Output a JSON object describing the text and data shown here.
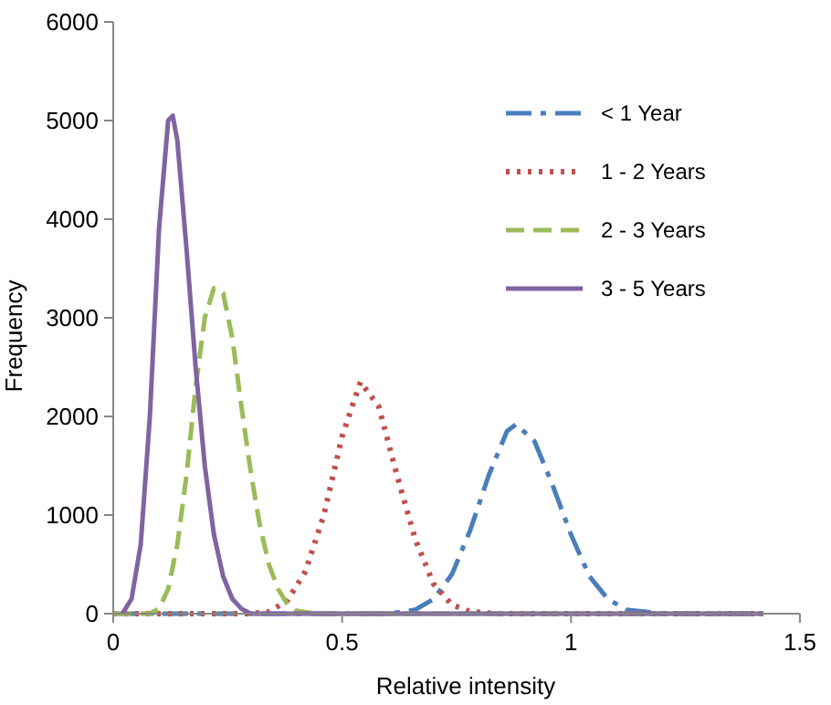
{
  "chart_data": {
    "type": "line",
    "xlabel": "Relative intensity",
    "ylabel": "Frequency",
    "xlim": [
      0,
      1.5
    ],
    "xticks": [
      0,
      0.5,
      1,
      1.5
    ],
    "ylim": [
      0,
      6000
    ],
    "yticks": [
      0,
      1000,
      2000,
      3000,
      4000,
      5000,
      6000
    ],
    "grid": false,
    "legend": "top right",
    "series": [
      {
        "name": "< 1 Year",
        "color": "#4a7ebb",
        "line_style": "dashdot",
        "x": [
          0,
          0.6,
          0.66,
          0.7,
          0.74,
          0.78,
          0.82,
          0.86,
          0.88,
          0.92,
          0.96,
          1.0,
          1.04,
          1.08,
          1.12,
          1.2,
          1.42
        ],
        "values": [
          0,
          0,
          40,
          150,
          400,
          850,
          1400,
          1850,
          1920,
          1750,
          1300,
          800,
          380,
          150,
          40,
          0,
          0
        ]
      },
      {
        "name": "1 - 2 Years",
        "color": "#c0504d",
        "line_style": "dotted",
        "x": [
          0,
          0.3,
          0.34,
          0.38,
          0.42,
          0.46,
          0.5,
          0.54,
          0.58,
          0.62,
          0.66,
          0.7,
          0.74,
          0.78,
          0.84,
          1.42
        ],
        "values": [
          0,
          0,
          20,
          130,
          430,
          1000,
          1800,
          2350,
          2100,
          1400,
          750,
          300,
          90,
          20,
          0,
          0
        ]
      },
      {
        "name": "2 - 3 Years",
        "color": "#9bbb59",
        "line_style": "dashed",
        "x": [
          0,
          0.08,
          0.1,
          0.12,
          0.14,
          0.16,
          0.18,
          0.2,
          0.22,
          0.24,
          0.26,
          0.28,
          0.3,
          0.32,
          0.34,
          0.36,
          0.38,
          0.4,
          0.44,
          1.42
        ],
        "values": [
          0,
          0,
          50,
          250,
          700,
          1400,
          2300,
          3000,
          3300,
          3250,
          2800,
          2100,
          1450,
          900,
          500,
          250,
          100,
          30,
          0,
          0
        ]
      },
      {
        "name": "3 - 5 Years",
        "color": "#8064a2",
        "line_style": "solid",
        "x": [
          0.02,
          0.04,
          0.06,
          0.08,
          0.1,
          0.12,
          0.13,
          0.14,
          0.16,
          0.18,
          0.2,
          0.22,
          0.24,
          0.26,
          0.28,
          0.3,
          1.42
        ],
        "values": [
          0,
          150,
          700,
          2000,
          3900,
          5000,
          5050,
          4800,
          3700,
          2500,
          1500,
          800,
          380,
          150,
          50,
          0,
          0
        ]
      }
    ]
  }
}
